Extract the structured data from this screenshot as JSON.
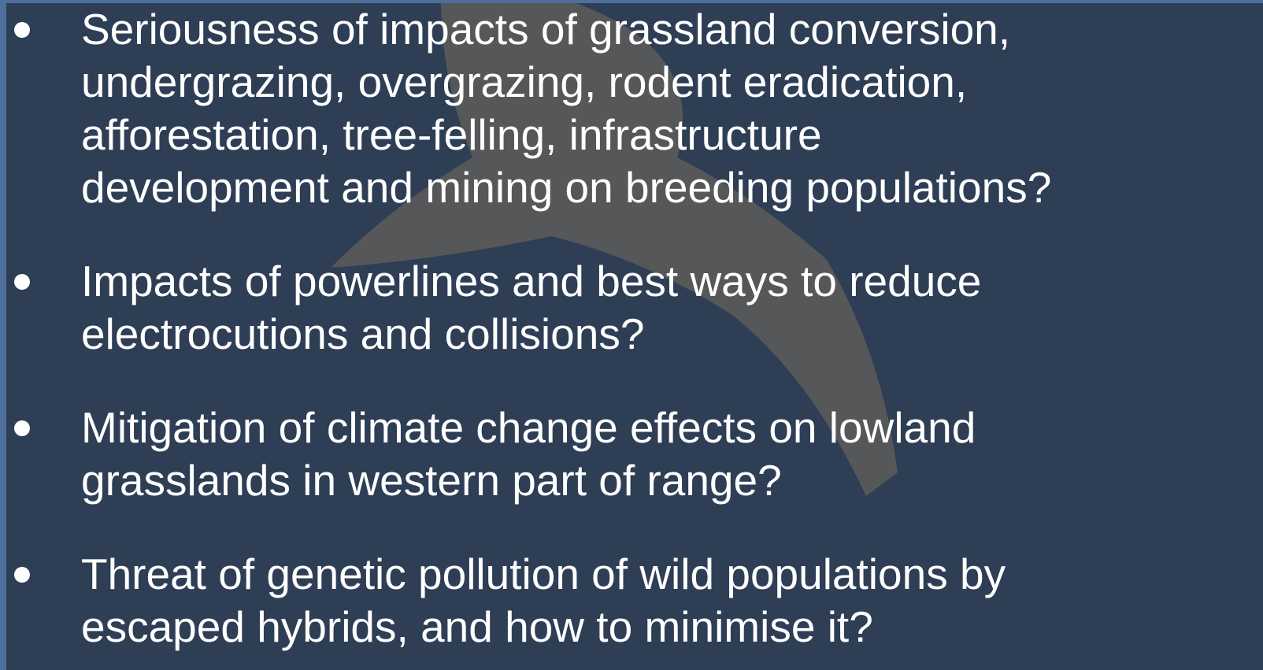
{
  "bullets": [
    {
      "lines": [
        "Seriousness of impacts of grassland conversion,",
        "undergrazing, overgrazing, rodent eradication,",
        "afforestation, tree-felling, infrastructure",
        "development and mining on breeding populations?"
      ]
    },
    {
      "lines": [
        "Impacts of powerlines and best ways to reduce",
        "electrocutions and collisions?"
      ]
    },
    {
      "lines": [
        "Mitigation of climate change effects on lowland",
        "grasslands in western part of range?"
      ]
    },
    {
      "lines": [
        "Threat of genetic pollution of wild populations by",
        "escaped hybrids, and how to minimise it?"
      ]
    }
  ]
}
